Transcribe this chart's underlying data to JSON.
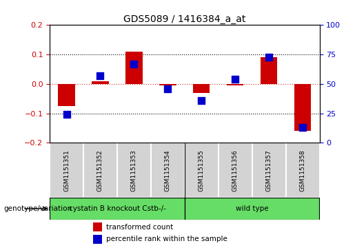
{
  "title": "GDS5089 / 1416384_a_at",
  "samples": [
    "GSM1151351",
    "GSM1151352",
    "GSM1151353",
    "GSM1151354",
    "GSM1151355",
    "GSM1151356",
    "GSM1151357",
    "GSM1151358"
  ],
  "red_values": [
    -0.075,
    0.01,
    0.11,
    -0.005,
    -0.03,
    -0.005,
    0.09,
    -0.16
  ],
  "blue_values": [
    24,
    57,
    67,
    46,
    36,
    54,
    73,
    13
  ],
  "knockout_count": 4,
  "group1_label": "cystatin B knockout Cstb-/-",
  "group2_label": "wild type",
  "ylim_left": [
    -0.2,
    0.2
  ],
  "ylim_right": [
    0,
    100
  ],
  "yticks_left": [
    -0.2,
    -0.1,
    0.0,
    0.1,
    0.2
  ],
  "yticks_right": [
    0,
    25,
    50,
    75,
    100
  ],
  "red_color": "#cc0000",
  "blue_color": "#0000cc",
  "bar_width": 0.5,
  "blue_marker_size": 45,
  "genotype_label": "genotype/variation",
  "legend1": "transformed count",
  "legend2": "percentile rank within the sample",
  "gray_color": "#d3d3d3",
  "green_color": "#66dd66"
}
